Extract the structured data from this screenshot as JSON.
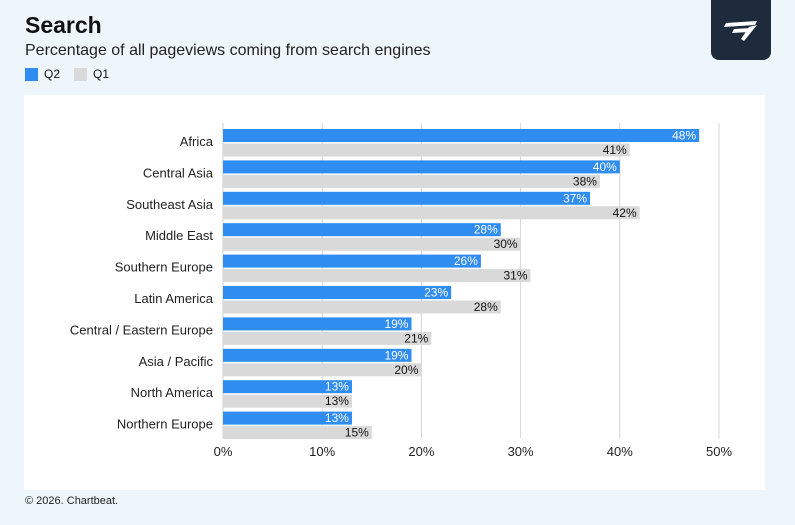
{
  "header": {
    "title": "Search",
    "subtitle": "Percentage of all pageviews coming from search engines"
  },
  "legend": [
    {
      "label": "Q2",
      "color": "#2f8cf0"
    },
    {
      "label": "Q1",
      "color": "#d9d9d9"
    }
  ],
  "logo": {
    "icon": "chartbeat-logo-icon",
    "bg_color": "#1e2b3c"
  },
  "footer": {
    "copyright": "© 2026. Chartbeat."
  },
  "chart_data": {
    "type": "bar",
    "orientation": "horizontal",
    "categories": [
      "Africa",
      "Central Asia",
      "Southeast Asia",
      "Middle East",
      "Southern Europe",
      "Latin America",
      "Central / Eastern Europe",
      "Asia / Pacific",
      "North America",
      "Northern Europe"
    ],
    "series": [
      {
        "name": "Q2",
        "color": "#2f8cf0",
        "values": [
          48,
          40,
          37,
          28,
          26,
          23,
          19,
          19,
          13,
          13
        ]
      },
      {
        "name": "Q1",
        "color": "#d9d9d9",
        "values": [
          41,
          38,
          42,
          30,
          31,
          28,
          21,
          20,
          13,
          15
        ]
      }
    ],
    "xlim": [
      0,
      50
    ],
    "xticks": [
      0,
      10,
      20,
      30,
      40,
      50
    ],
    "tick_suffix": "%",
    "value_suffix": "%",
    "grid": true,
    "legend_position": "top-left"
  }
}
